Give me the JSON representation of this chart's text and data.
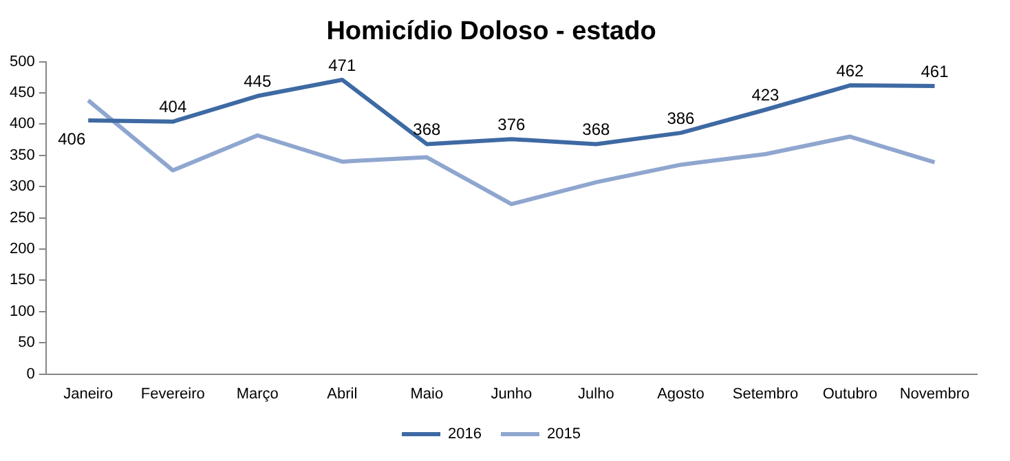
{
  "chart_data": {
    "type": "line",
    "title": "Homicídio Doloso - estado",
    "categories": [
      "Janeiro",
      "Fevereiro",
      "Março",
      "Abril",
      "Maio",
      "Junho",
      "Julho",
      "Agosto",
      "Setembro",
      "Outubro",
      "Novembro"
    ],
    "series": [
      {
        "name": "2016",
        "color": "#3e6aa3",
        "values": [
          406,
          404,
          445,
          471,
          368,
          376,
          368,
          386,
          423,
          462,
          461
        ],
        "value_labels": [
          "406",
          "404",
          "445",
          "471",
          "368",
          "376",
          "368",
          "386",
          "423",
          "462",
          "461"
        ]
      },
      {
        "name": "2015",
        "color": "#8fa6cf",
        "values": [
          438,
          326,
          382,
          340,
          347,
          272,
          307,
          335,
          352,
          380,
          339
        ]
      }
    ],
    "ylim": [
      0,
      500
    ],
    "yticks": [
      0,
      50,
      100,
      150,
      200,
      250,
      300,
      350,
      400,
      450,
      500
    ],
    "grid": false,
    "legend": "bottom",
    "marker": "none",
    "line_style": "solid"
  }
}
